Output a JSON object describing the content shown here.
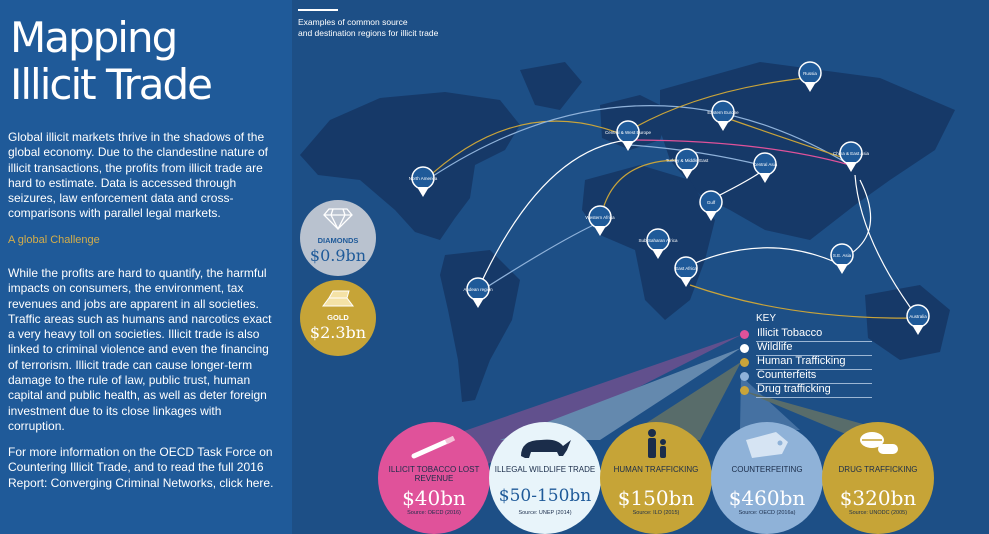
{
  "title_line1": "Mapping",
  "title_line2": "Illicit Trade",
  "intro": "Global illicit markets thrive in the shadows of the global economy. Due to the clandestine nature of illicit transactions, the profits from illicit trade are hard to estimate. Data is accessed through seizures, law enforcement data and cross-comparisons with parallel legal markets.",
  "subheading": "A global Challenge",
  "body": "While the profits are hard to quantify, the harmful impacts on consumers, the environment, tax revenues and jobs are apparent in all societies. Traffic areas such as humans and narcotics exact a very heavy toll on societies. Illicit trade is also linked to criminal violence and even the financing of terrorism. Illicit trade can cause longer-term damage to the rule of law, public trust, human capital and public health, as well as deter foreign investment due to its close linkages with corruption.",
  "more_info": "For more information on the OECD Task Force on Countering Illicit Trade, and to read the full 2016 Report: Converging Criminal Networks, click here.",
  "map_caption_1": "Examples of common source",
  "map_caption_2": "and destination regions for illicit trade",
  "regions": [
    "Russia",
    "Eastern Europe",
    "Central & West Europe",
    "Turkey & Middle East",
    "Central Asia",
    "China & East Asia",
    "North America",
    "Western Africa",
    "Gulf",
    "Sub-Saharan Africa",
    "East Africa",
    "S.E. Asia",
    "Andean region",
    "Australia"
  ],
  "diamonds": {
    "label": "DIAMONDS",
    "value": "$0.9bn"
  },
  "gold": {
    "label": "GOLD",
    "value": "$2.3bn"
  },
  "key": {
    "title": "KEY",
    "items": [
      {
        "label": "Illicit Tobacco",
        "color": "#e0529a"
      },
      {
        "label": "Wildlife",
        "color": "#ffffff"
      },
      {
        "label": "Human Trafficking",
        "color": "#c9a43a"
      },
      {
        "label": "Counterfeits",
        "color": "#8fb2da"
      },
      {
        "label": "Drug trafficking",
        "color": "#c9a43a"
      }
    ]
  },
  "stats": [
    {
      "title": "ILLICIT TOBACCO LOST REVENUE",
      "value": "$40bn",
      "source": "Source: OECD (2016)",
      "color": "#e0529a"
    },
    {
      "title": "ILLEGAL WILDLIFE TRADE",
      "value": "$50-150bn",
      "source": "Source: UNEP (2014)",
      "color": "#e8f4fa"
    },
    {
      "title": "HUMAN TRAFFICKING",
      "value": "$150bn",
      "source": "Source: ILO (2015)",
      "color": "#c6a437"
    },
    {
      "title": "COUNTERFEITING",
      "value": "$460bn",
      "source": "Source: OECD (2016a)",
      "color": "#8fb2d8"
    },
    {
      "title": "DRUG TRAFFICKING",
      "value": "$320bn",
      "source": "Source: UNODC (2005)",
      "color": "#c6a437"
    }
  ],
  "colors": {
    "background": "#1d4f86",
    "panel": "#1f5a99",
    "land": "#163968",
    "accent_gold": "#d3ad4a"
  }
}
